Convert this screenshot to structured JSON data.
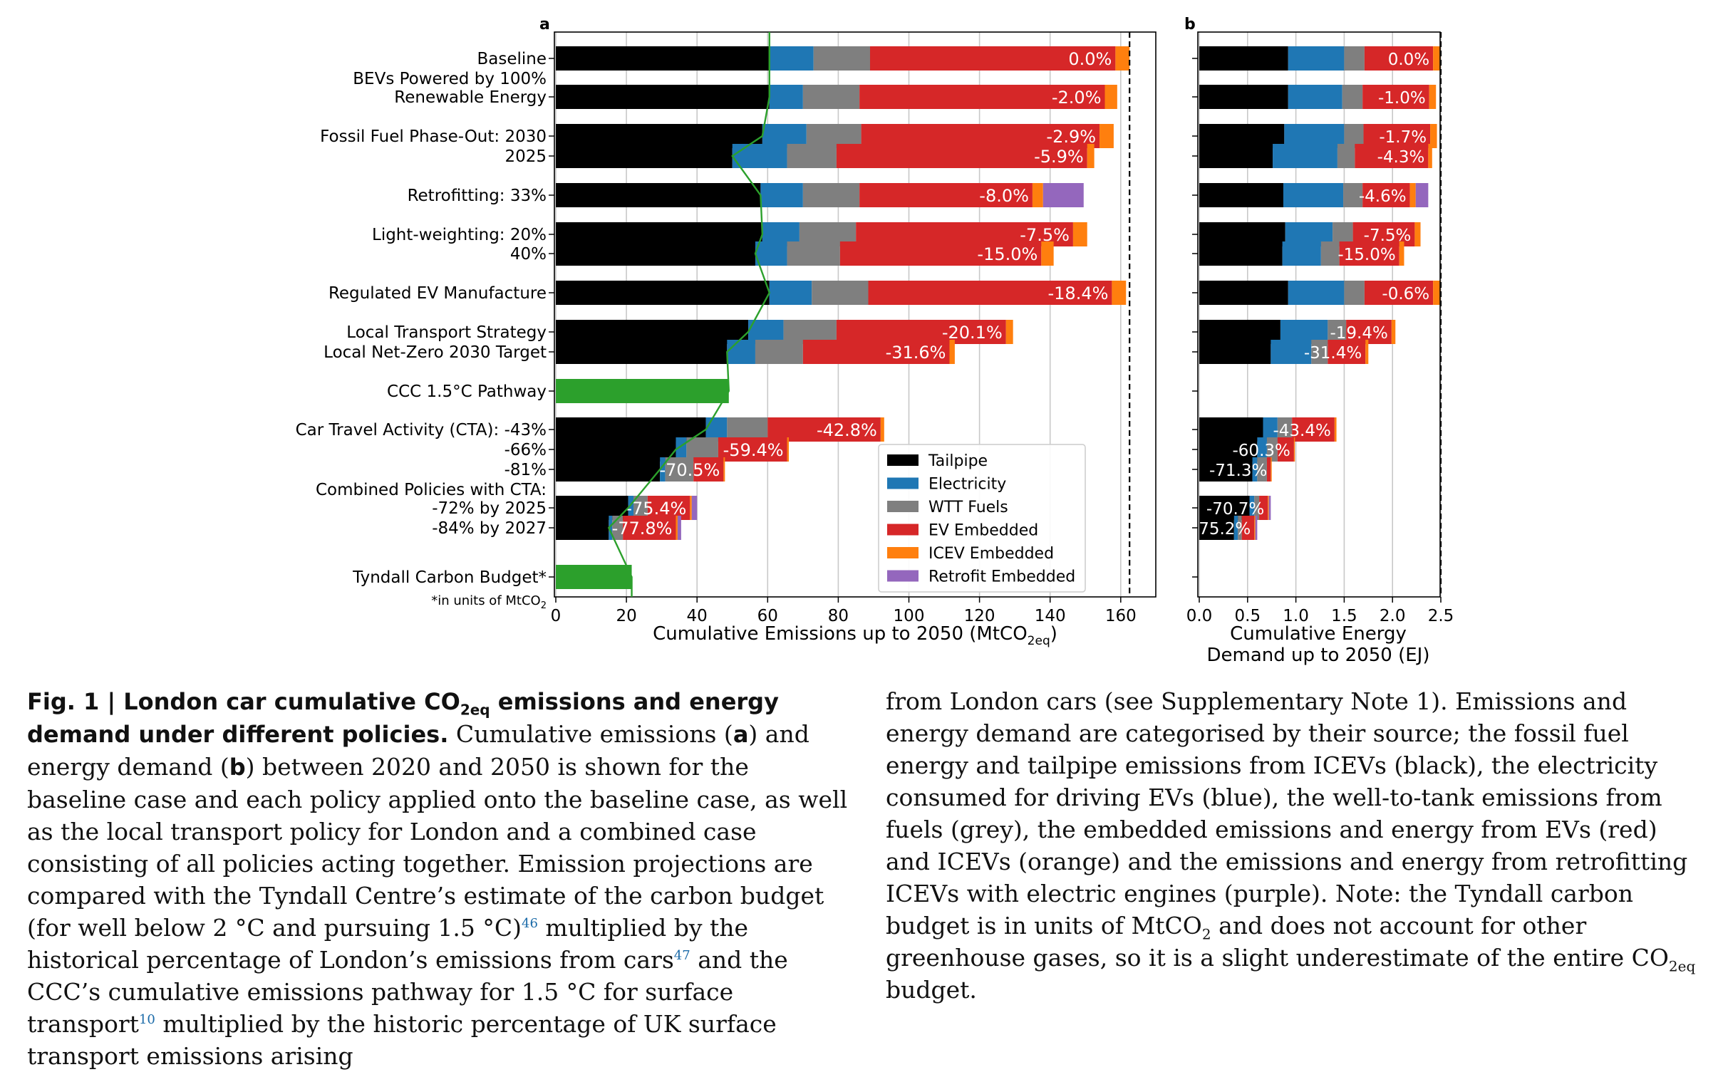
{
  "chart_data": [
    {
      "type": "bar",
      "orientation": "horizontal",
      "stacked": true,
      "panel_label": "a",
      "xlabel": "Cumulative Emissions up to 2050 (MtCO2eq)",
      "xlim": [
        0,
        170
      ],
      "xticks": [
        0,
        20,
        40,
        60,
        80,
        100,
        120,
        140,
        160
      ],
      "grid": "vertical",
      "legend_position": "lower-right",
      "footnote": "*in units of MtCO2",
      "group_labels": [
        "Baseline",
        "BEVs Powered by 100%\nRenewable Energy",
        "Fossil Fuel Phase-Out: 2030",
        "Retrofitting: 33%",
        "Light-weighting: 20%",
        "Regulated EV Manufacture",
        "Local Transport Strategy",
        "CCC 1.5°C Pathway",
        "Car Travel Activity (CTA): -43%",
        "Combined Policies with CTA:",
        "Tyndall Carbon Budget*"
      ],
      "categories": [
        "Baseline",
        "BEVs Powered by 100%\nRenewable Energy",
        "Fossil Fuel Phase-Out: 2030",
        "2025",
        "Retrofitting: 33%",
        "Light-weighting: 20%",
        "40%",
        "Regulated EV Manufacture",
        "Local Transport Strategy",
        "Local Net-Zero 2030 Target",
        "CCC 1.5°C Pathway",
        "Car Travel Activity (CTA): -43%",
        "-66%",
        "-81%",
        "Combined Policies with CTA:\n-72% by 2025",
        "-84% by 2027",
        "Tyndall Carbon Budget*"
      ],
      "series": [
        {
          "name": "Tailpipe",
          "color": "#000000",
          "values": [
            60.5,
            60.5,
            58.5,
            50,
            58,
            58.5,
            56.5,
            60.5,
            54.5,
            48.5,
            null,
            42.5,
            34,
            29.5,
            20.5,
            15,
            null
          ]
        },
        {
          "name": "Electricity",
          "color": "#1f77b4",
          "values": [
            12.5,
            9.5,
            12.5,
            15.5,
            12,
            10.5,
            9,
            12,
            10,
            8,
            null,
            6,
            3,
            1.5,
            1.5,
            1,
            null
          ]
        },
        {
          "name": "WTT Fuels",
          "color": "#7f7f7f",
          "values": [
            16,
            16,
            15.5,
            14,
            16,
            16,
            15,
            16,
            15,
            13.5,
            null,
            11.5,
            9,
            8,
            4,
            3,
            null
          ]
        },
        {
          "name": "EV Embedded",
          "color": "#d62728",
          "values": [
            69.5,
            69.5,
            67.5,
            71,
            49,
            61.5,
            57,
            69,
            48,
            41.5,
            null,
            32,
            19.5,
            8.5,
            12,
            15,
            null
          ]
        },
        {
          "name": "ICEV Embedded",
          "color": "#ff7f0e",
          "values": [
            4,
            3.5,
            4,
            2,
            3,
            4,
            3.5,
            4,
            2,
            1.5,
            null,
            1,
            0.5,
            0.4,
            0.5,
            0.5,
            null
          ]
        },
        {
          "name": "Retrofit Embedded",
          "color": "#9467bd",
          "values": [
            0,
            0,
            0,
            0,
            11.5,
            0,
            0,
            0,
            0,
            0,
            null,
            0,
            0,
            0,
            1.5,
            1,
            null
          ]
        },
        {
          "name": "",
          "color": "#2ca02c",
          "values": [
            null,
            null,
            null,
            null,
            null,
            null,
            null,
            null,
            null,
            null,
            49,
            null,
            null,
            null,
            null,
            null,
            21.5
          ]
        }
      ],
      "data_labels": [
        "0.0%",
        "-2.0%",
        "-2.9%",
        "-5.9%",
        "-8.0%",
        "-7.5%",
        "-15.0%",
        "-18.4%",
        "-20.1%",
        "-31.6%",
        "",
        "-42.8%",
        "-59.4%",
        "-70.5%",
        "-75.4%",
        "-77.8%",
        ""
      ],
      "reference_line": {
        "x": 162.5,
        "style": "dashed"
      },
      "pathway_line": {
        "color": "#2ca02c"
      }
    },
    {
      "type": "bar",
      "orientation": "horizontal",
      "stacked": true,
      "panel_label": "b",
      "xlabel": "Cumulative Energy\nDemand up to 2050 (EJ)",
      "xlim": [
        0,
        2.5
      ],
      "xticks": [
        0.0,
        0.5,
        1.0,
        1.5,
        2.0,
        2.5
      ],
      "grid": "vertical",
      "categories": [
        "Baseline",
        "BEVs Powered by 100%\nRenewable Energy",
        "Fossil Fuel Phase-Out: 2030",
        "2025",
        "Retrofitting: 33%",
        "Light-weighting: 20%",
        "40%",
        "Regulated EV Manufacture",
        "Local Transport Strategy",
        "Local Net-Zero 2030 Target",
        "CCC 1.5°C Pathway",
        "Car Travel Activity (CTA): -43%",
        "-66%",
        "-81%",
        "Combined Policies with CTA:\n-72% by 2025",
        "-84% by 2027",
        "Tyndall Carbon Budget*"
      ],
      "series": [
        {
          "name": "Tailpipe",
          "color": "#000000",
          "values": [
            0.92,
            0.92,
            0.88,
            0.76,
            0.87,
            0.89,
            0.86,
            0.92,
            0.84,
            0.74,
            null,
            0.66,
            0.6,
            0.55,
            0.52,
            0.36,
            null
          ]
        },
        {
          "name": "Electricity",
          "color": "#1f77b4",
          "values": [
            0.58,
            0.56,
            0.62,
            0.67,
            0.62,
            0.49,
            0.4,
            0.58,
            0.49,
            0.42,
            null,
            0.15,
            0.1,
            0.05,
            0.05,
            0.04,
            null
          ]
        },
        {
          "name": "WTT Fuels",
          "color": "#7f7f7f",
          "values": [
            0.21,
            0.21,
            0.2,
            0.18,
            0.2,
            0.21,
            0.19,
            0.21,
            0.19,
            0.17,
            null,
            0.15,
            0.11,
            0.1,
            0.05,
            0.04,
            null
          ]
        },
        {
          "name": "EV Embedded",
          "color": "#d62728",
          "values": [
            0.71,
            0.69,
            0.69,
            0.76,
            0.49,
            0.64,
            0.62,
            0.71,
            0.47,
            0.39,
            null,
            0.44,
            0.17,
            0.04,
            0.09,
            0.13,
            null
          ]
        },
        {
          "name": "ICEV Embedded",
          "color": "#ff7f0e",
          "values": [
            0.08,
            0.07,
            0.07,
            0.04,
            0.06,
            0.06,
            0.05,
            0.08,
            0.04,
            0.03,
            null,
            0.02,
            0.01,
            0.01,
            0.01,
            0.01,
            null
          ]
        },
        {
          "name": "Retrofit Embedded",
          "color": "#9467bd",
          "values": [
            0,
            0,
            0,
            0,
            0.13,
            0,
            0,
            0,
            0,
            0,
            null,
            0,
            0,
            0,
            0.02,
            0.02,
            null
          ]
        }
      ],
      "data_labels": [
        "0.0%",
        "-1.0%",
        "-1.7%",
        "-4.3%",
        "-4.6%",
        "-7.5%",
        "-15.0%",
        "-0.6%",
        "-19.4%",
        "-31.4%",
        "",
        "-43.4%",
        "-60.3%",
        "-71.3%",
        "-70.7%",
        "-75.2%",
        ""
      ],
      "reference_line": {
        "x": 2.5,
        "style": "dashed"
      }
    }
  ],
  "caption": {
    "left_bold_1": "Fig. 1 | London car cumulative CO",
    "left_bold_sub": "2eq",
    "left_bold_2": " emissions and energy demand under different policies.",
    "left_text_1": " Cumulative emissions (",
    "left_a": "a",
    "left_text_2": ") and energy demand (",
    "left_b": "b",
    "left_text_3": ") between 2020 and 2050 is shown for the baseline case and each policy applied onto the baseline case, as well as the local transport policy for London and a combined case consisting of all policies acting together. Emission projections are compared with the Tyndall Centre’s estimate of the carbon budget (for well below 2 °C and pursuing 1.5 °C)",
    "ref_46": "46",
    "left_text_4": " multiplied by the historical percentage of London’s emissions from cars",
    "ref_47": "47",
    "left_text_5": " and the CCC’s cumulative emissions pathway for 1.5 °C for surface transport",
    "ref_10": "10",
    "left_text_6": " multiplied by the historic percentage of UK surface transport emissions arising",
    "right_text_1": "from London cars (see Supplementary Note 1). Emissions and energy demand are categorised by their source; the fossil fuel energy and tailpipe emissions from ICEVs (black), the electricity consumed for driving EVs (blue), the well-to-tank emissions from fuels (grey), the embedded emissions and energy from EVs (red) and ICEVs (orange) and the emissions and energy from retrofitting ICEVs with electric engines (purple). Note: the Tyndall carbon budget is in units of MtCO",
    "right_sub_1": "2",
    "right_text_2": " and does not account for other greenhouse gases, so it is a slight underestimate of the entire CO",
    "right_sub_2": "2eq",
    "right_text_3": " budget."
  }
}
